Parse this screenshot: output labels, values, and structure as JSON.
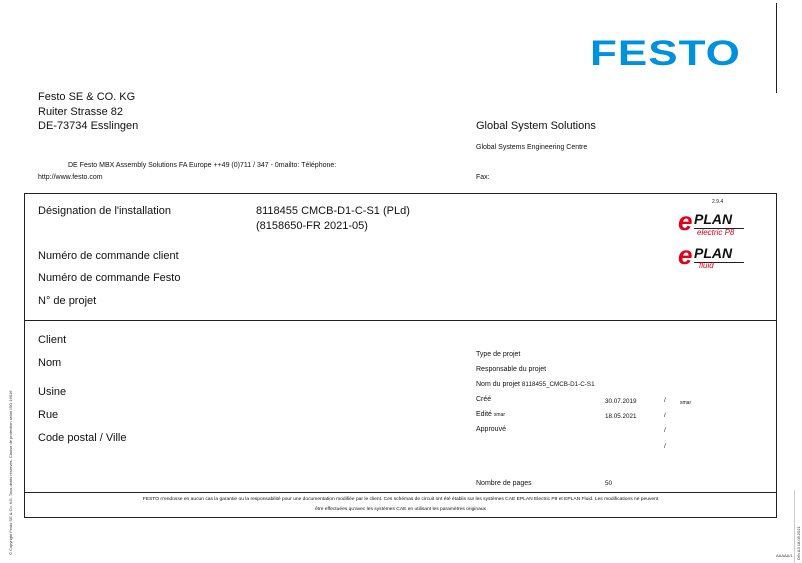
{
  "brand": {
    "logo": "FESTO",
    "color": "#0091dc"
  },
  "company": {
    "name": "Festo SE & CO. KG",
    "street": "Ruiter Strasse 82",
    "city": "DE-73734 Esslingen",
    "contact": "DE Festo MBX Assembly Solutions FA Europe ++49 (0)711 / 347 - 0mailto: Téléphone:",
    "web": "http://www.festo.com"
  },
  "right_header": {
    "title": "Global System Solutions",
    "subtitle": "Global Systems Engineering Centre",
    "fax": "Fax:"
  },
  "installation": {
    "label": "Désignation de l'installation",
    "value1": "8118455 CMCB-D1-C-S1 (PLd)",
    "value2": "(8158650-FR 2021-05)",
    "order_client": "Numéro de commande client",
    "order_festo": "Numéro de commande Festo",
    "project_no": "N° de projet"
  },
  "eplan": {
    "version": "2.9.4",
    "logo1": "ePLAN electric P8",
    "logo2": "ePLAN fluid",
    "color": "#e2001a"
  },
  "client": {
    "client": "Client",
    "name": "Nom",
    "plant": "Usine",
    "street": "Rue",
    "postal": "Code postal / Ville"
  },
  "project": {
    "type": "Type de projet",
    "responsible": "Responsable du projet",
    "name": "Nom du projet",
    "name_value": "8118455_CMCB-D1-C-S1",
    "created": "Créé",
    "created_date": "30.07.2019",
    "created_by": "smar",
    "edited": "Edité",
    "edited_by": "smar",
    "edited_date": "18.05.2021",
    "approved": "Approuvé",
    "slash": "/",
    "pages": "Nombre de pages",
    "pages_value": "50"
  },
  "disclaimer": {
    "line1": "FESTO n'endosse en aucun cas la garantie ou la responsabilité pour une documentation modifiée par le client. Ces schémas de circuit ont été établis sur les systèmes CAE EPLAN Electric P8 et EPLAN Fluid. Les modifications ne peuvent",
    "line2": "être effectuées qu'avec les systèmes CAE en utilisant les paramètres originaux"
  },
  "side": {
    "copyright": "© Copyright Festo SE & Co. KG. Tous droits réservés. Clause de protection selon ISO 16016",
    "right": "DIN A3   18.05.2021",
    "page_id": "AAAAA/1"
  }
}
